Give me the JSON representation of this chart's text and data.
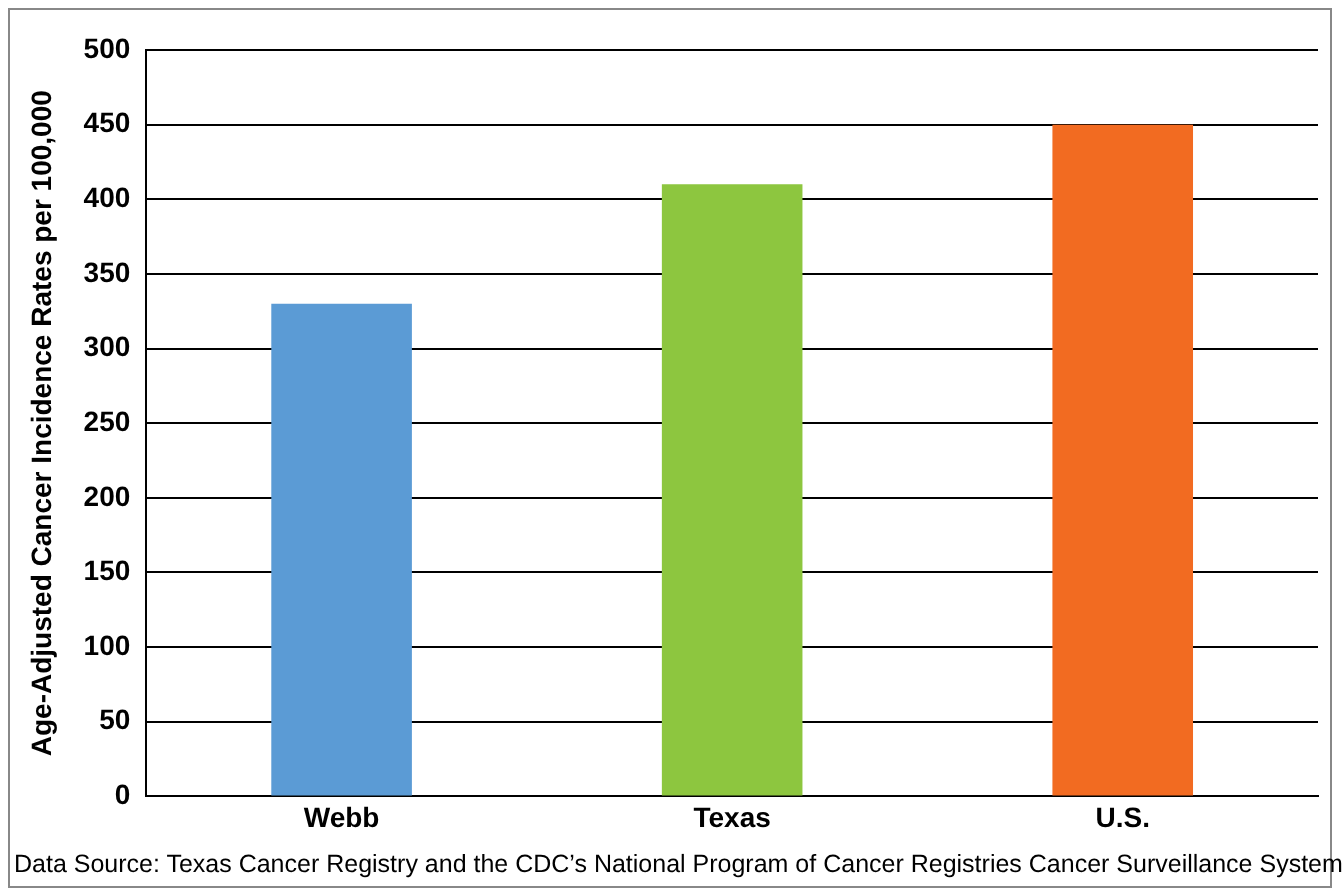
{
  "chart_data": {
    "type": "bar",
    "ylabel": "Age-Adjusted Cancer Incidence Rates per 100,000",
    "categories": [
      "Webb",
      "Texas",
      "U.S."
    ],
    "values": [
      330,
      410,
      450
    ],
    "colors": [
      "#5b9bd5",
      "#8dc63f",
      "#f26b21"
    ],
    "ylim": [
      0,
      500
    ],
    "yticks": [
      0,
      50,
      100,
      150,
      200,
      250,
      300,
      350,
      400,
      450,
      500
    ],
    "grid": "y",
    "annotations": [
      "Data Source: Texas Cancer Registry and the CDC’s National Program of Cancer Registries Cancer Surveillance System"
    ]
  }
}
